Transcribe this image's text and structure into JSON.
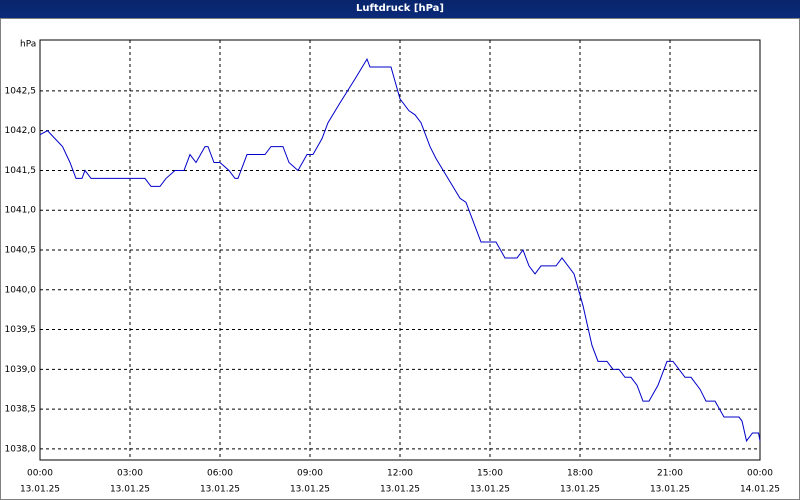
{
  "chart_data": {
    "type": "line",
    "title": "Luftdruck [hPa]",
    "y_label": "hPa",
    "x": [
      0,
      0.25,
      0.5,
      0.75,
      1.0,
      1.2,
      1.4,
      1.5,
      1.7,
      2.0,
      3.0,
      3.5,
      3.7,
      4.0,
      4.2,
      4.5,
      4.8,
      5.0,
      5.2,
      5.5,
      5.6,
      5.8,
      6.0,
      6.3,
      6.5,
      6.6,
      6.9,
      7.0,
      7.5,
      7.7,
      8.1,
      8.3,
      8.6,
      8.9,
      9.1,
      9.4,
      9.6,
      10.0,
      10.5,
      10.9,
      11.0,
      11.5,
      11.7,
      12.0,
      12.3,
      12.5,
      12.7,
      13.0,
      13.2,
      13.6,
      14.0,
      14.2,
      14.5,
      14.7,
      15.0,
      15.2,
      15.5,
      15.9,
      16.1,
      16.3,
      16.5,
      16.7,
      17.0,
      17.2,
      17.4,
      17.8,
      18.1,
      18.4,
      18.6,
      18.9,
      19.1,
      19.3,
      19.5,
      19.7,
      19.9,
      20.1,
      20.3,
      20.6,
      20.9,
      21.1,
      21.3,
      21.5,
      21.7,
      22.0,
      22.2,
      22.5,
      22.8,
      23.3,
      23.4,
      23.55,
      23.75,
      23.95,
      24.0
    ],
    "series": [
      {
        "name": "Luftdruck",
        "color": "#0000c8",
        "values": [
          1041.95,
          1042.0,
          1041.9,
          1041.8,
          1041.6,
          1041.4,
          1041.4,
          1041.5,
          1041.4,
          1041.4,
          1041.4,
          1041.4,
          1041.3,
          1041.3,
          1041.4,
          1041.5,
          1041.5,
          1041.7,
          1041.6,
          1041.8,
          1041.8,
          1041.6,
          1041.6,
          1041.5,
          1041.4,
          1041.4,
          1041.7,
          1041.7,
          1041.7,
          1041.8,
          1041.8,
          1041.6,
          1041.5,
          1041.7,
          1041.7,
          1041.9,
          1042.1,
          1042.35,
          1042.65,
          1042.9,
          1042.8,
          1042.8,
          1042.8,
          1042.4,
          1042.25,
          1042.2,
          1042.1,
          1041.8,
          1041.65,
          1041.4,
          1041.15,
          1041.1,
          1040.8,
          1040.6,
          1040.6,
          1040.6,
          1040.4,
          1040.4,
          1040.5,
          1040.3,
          1040.2,
          1040.3,
          1040.3,
          1040.3,
          1040.4,
          1040.2,
          1039.8,
          1039.3,
          1039.1,
          1039.1,
          1039.0,
          1039.0,
          1038.9,
          1038.9,
          1038.8,
          1038.6,
          1038.6,
          1038.8,
          1039.1,
          1039.1,
          1039.0,
          1038.9,
          1038.9,
          1038.75,
          1038.6,
          1038.6,
          1038.4,
          1038.4,
          1038.35,
          1038.1,
          1038.2,
          1038.2,
          1038.1
        ]
      }
    ],
    "xlim": [
      0,
      24
    ],
    "ylim": [
      1037.86,
      1043.14
    ],
    "grid": true,
    "xticks": [
      {
        "value": 0,
        "label": [
          "00:00",
          "13.01.25"
        ]
      },
      {
        "value": 3,
        "label": [
          "03:00",
          "13.01.25"
        ]
      },
      {
        "value": 6,
        "label": [
          "06:00",
          "13.01.25"
        ]
      },
      {
        "value": 9,
        "label": [
          "09:00",
          "13.01.25"
        ]
      },
      {
        "value": 12,
        "label": [
          "12:00",
          "13.01.25"
        ]
      },
      {
        "value": 15,
        "label": [
          "15:00",
          "13.01.25"
        ]
      },
      {
        "value": 18,
        "label": [
          "18:00",
          "13.01.25"
        ]
      },
      {
        "value": 21,
        "label": [
          "21:00",
          "13.01.25"
        ]
      },
      {
        "value": 24,
        "label": [
          "00:00",
          "14.01.25"
        ]
      }
    ],
    "yticks": [
      {
        "value": 1038.0,
        "label": "1038,0"
      },
      {
        "value": 1038.5,
        "label": "1038,5"
      },
      {
        "value": 1039.0,
        "label": "1039,0"
      },
      {
        "value": 1039.5,
        "label": "1039,5"
      },
      {
        "value": 1040.0,
        "label": "1040,0"
      },
      {
        "value": 1040.5,
        "label": "1040,5"
      },
      {
        "value": 1041.0,
        "label": "1041,0"
      },
      {
        "value": 1041.5,
        "label": "1041,5"
      },
      {
        "value": 1042.0,
        "label": "1042,0"
      },
      {
        "value": 1042.5,
        "label": "1042,5"
      }
    ]
  }
}
